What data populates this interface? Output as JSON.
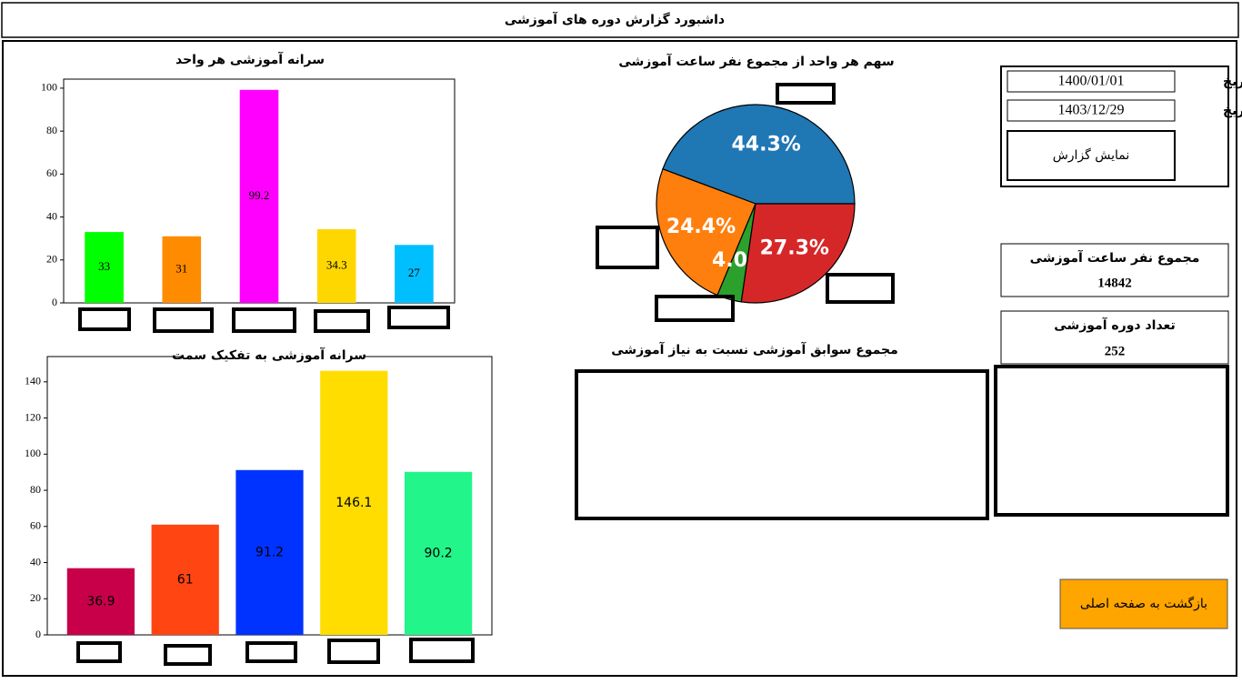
{
  "header": {
    "title": "داشبورد گزارش دوره های آموزشی"
  },
  "form": {
    "from_label": "از تاریخ",
    "from_value": "1400/01/01",
    "to_label": "تا تاریخ",
    "to_value": "1403/12/29",
    "button": "نمایش گزارش"
  },
  "stats": [
    {
      "label": "مجموع نفر ساعت آموزشی",
      "value": "14842"
    },
    {
      "label": "تعداد دوره آموزشی",
      "value": "252"
    }
  ],
  "needs": {
    "title": "مجموع سوابق آموزشی نسبت به نیاز آموزشی"
  },
  "back_button": "بازگشت به صفحه اصلی",
  "chart_data": [
    {
      "type": "bar",
      "title": "سرانه آموزشی هر واحد",
      "categories": [
        null,
        null,
        null,
        null,
        null
      ],
      "values": [
        33,
        31,
        99.2,
        34.3,
        27
      ],
      "colors": [
        "#00ff00",
        "#ff8c00",
        "#ff00ff",
        "#ffd700",
        "#00bfff"
      ],
      "ylim": [
        0,
        104.2
      ],
      "yticks": [
        0,
        20,
        40,
        60,
        80,
        100
      ]
    },
    {
      "type": "bar",
      "title": "سرانه آموزشی به تفکیک سمت",
      "categories": [
        null,
        null,
        null,
        null,
        null
      ],
      "values": [
        36.9,
        61,
        91.2,
        146.1,
        90.2
      ],
      "colors": [
        "#c8004a",
        "#ff4512",
        "#0033ff",
        "#ffdd00",
        "#22f58a"
      ],
      "ylim": [
        0,
        154
      ],
      "yticks": [
        0,
        20,
        40,
        60,
        80,
        100,
        120,
        140
      ]
    },
    {
      "type": "pie",
      "title": "سهم هر واحد از مجموع نفر ساعت آموزشی",
      "categories": [
        null,
        null,
        null,
        null
      ],
      "values": [
        44.3,
        24.4,
        4.0,
        27.3
      ],
      "value_labels": [
        "44.3%",
        "24.4%",
        "4.0%",
        "27.3%"
      ],
      "colors": [
        "#1f77b4",
        "#ff7f0e",
        "#2ca02c",
        "#d62728"
      ]
    }
  ]
}
